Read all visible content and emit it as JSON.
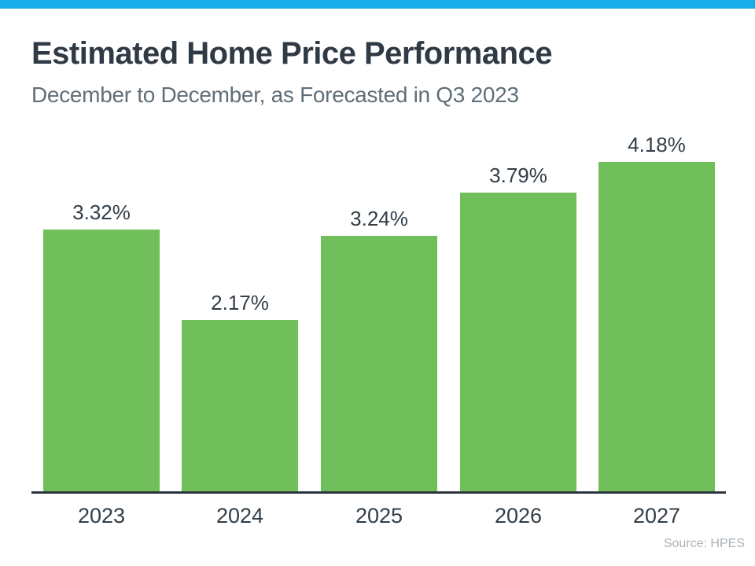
{
  "page": {
    "background_color": "#FFFFFF",
    "accent_bar_color": "#17ACEA"
  },
  "chart_data": {
    "type": "bar",
    "title": "Estimated Home Price Performance",
    "subtitle": "December to December, as Forecasted in Q3 2023",
    "categories": [
      "2023",
      "2024",
      "2025",
      "2026",
      "2027"
    ],
    "values": [
      3.32,
      2.17,
      3.24,
      3.79,
      4.18
    ],
    "value_labels": [
      "3.32%",
      "2.17%",
      "3.24%",
      "3.79%",
      "4.18%"
    ],
    "source": "Source: HPES",
    "xlabel": "",
    "ylabel": "",
    "ylim": [
      0,
      4.5
    ],
    "grid": false,
    "legend": false,
    "colors": {
      "bar": "#71BF5A",
      "title_text": "#2F3A44",
      "subtitle_text": "#5F6E77",
      "label_text": "#313D47",
      "axis_line": "#2B353D",
      "source_text": "#ABB1BA"
    }
  }
}
